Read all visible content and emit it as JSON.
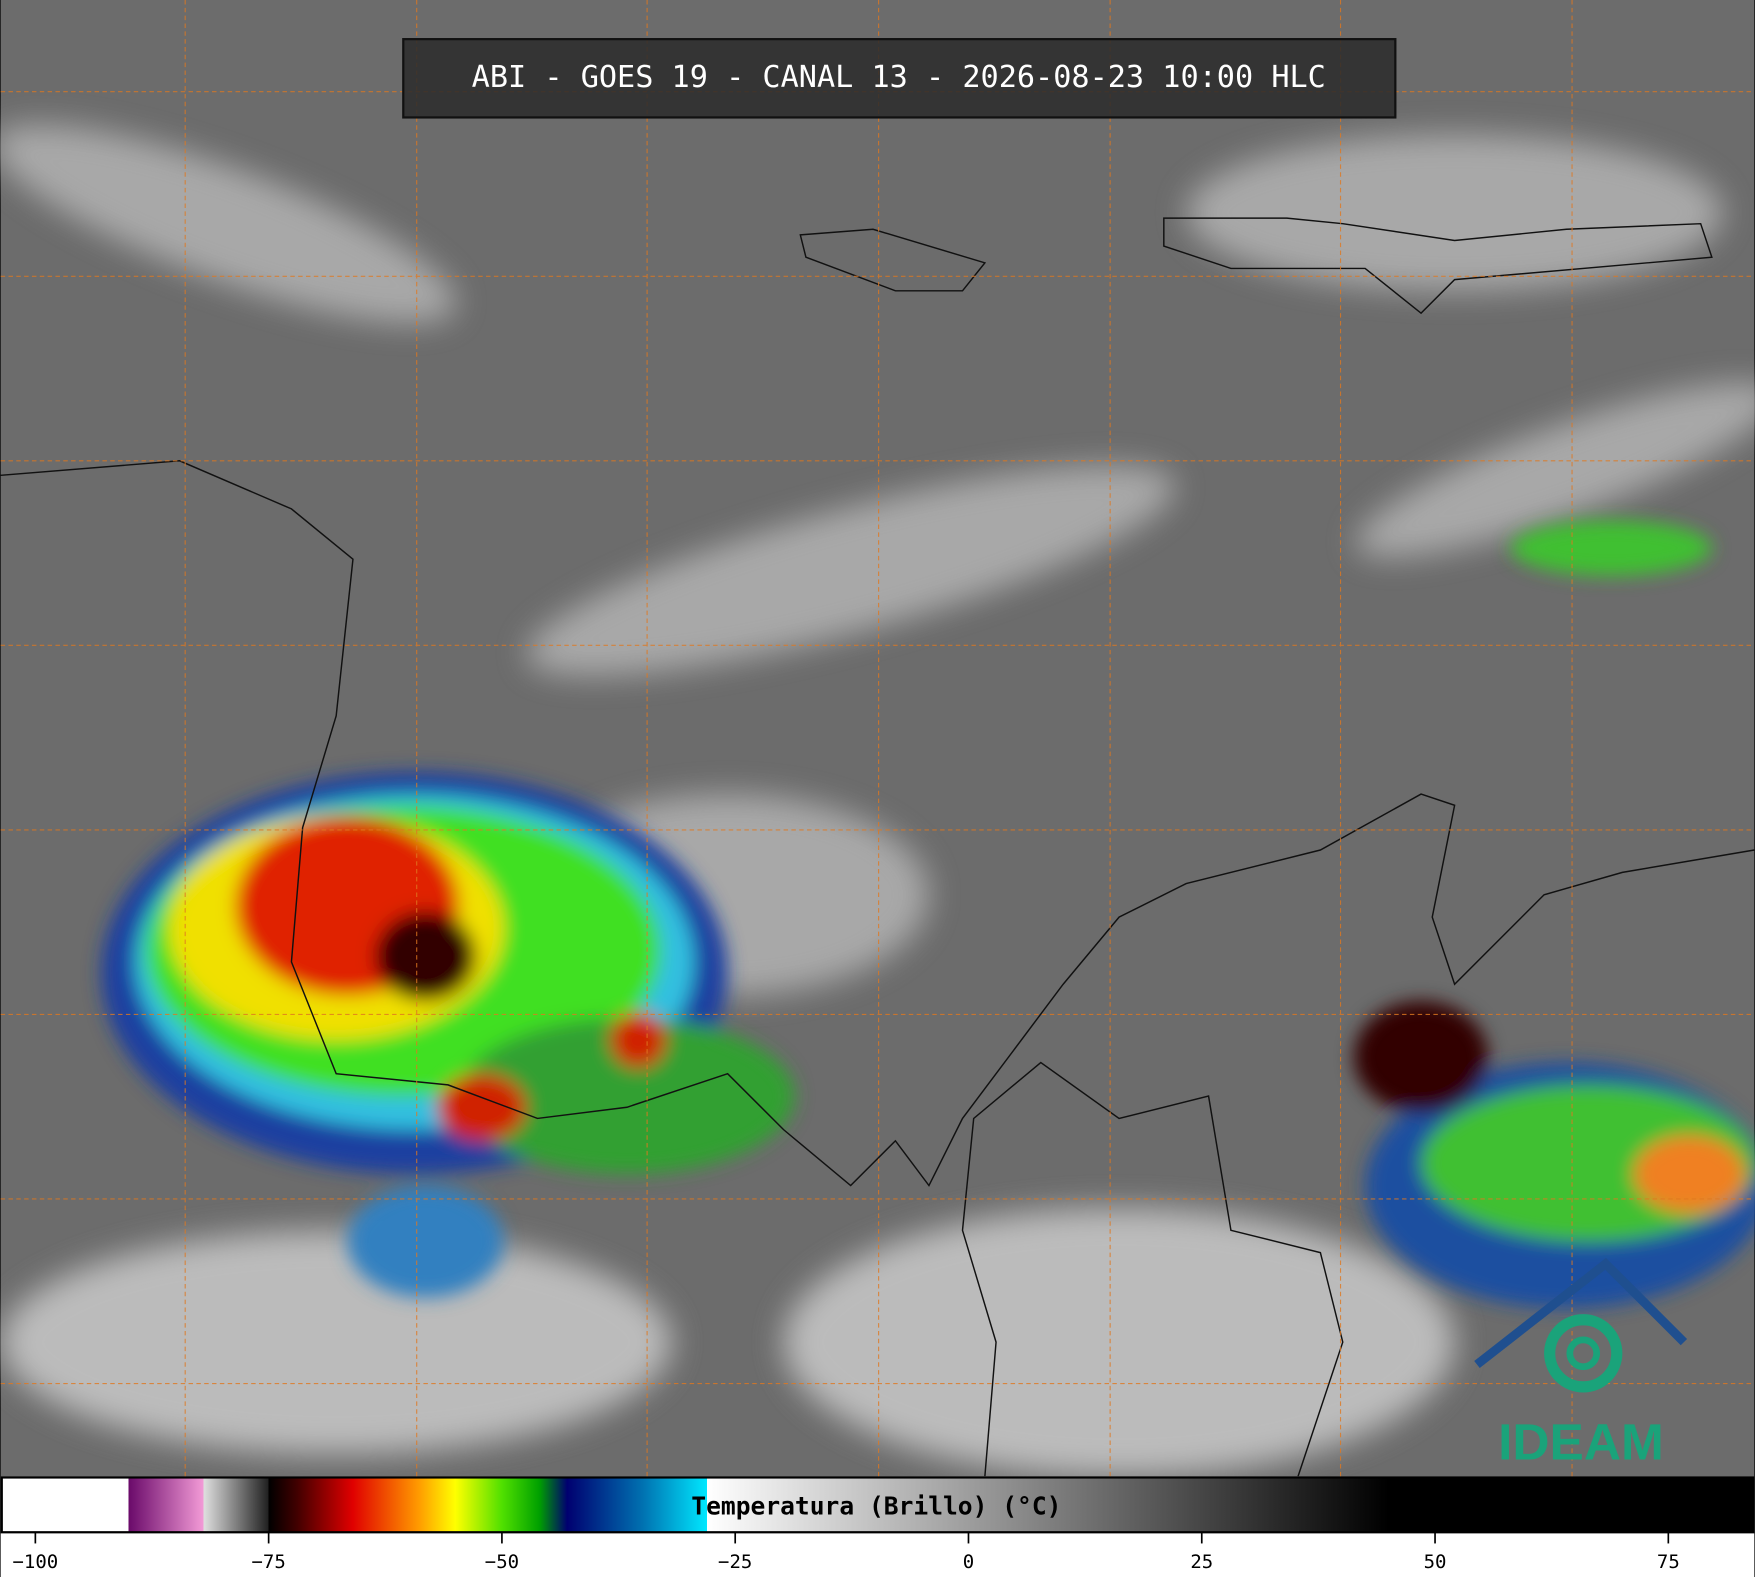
{
  "header": {
    "title": "ABI - GOES 19 - CANAL 13 - 2026-08-23 10:00 HLC"
  },
  "colorbar": {
    "type": "colorbar",
    "label": "Temperatura (Brillo) (°C)",
    "xlim": [
      -103.6,
      84.1
    ],
    "xticks": [
      {
        "value": -100,
        "label": "−100"
      },
      {
        "value": -75,
        "label": "−75"
      },
      {
        "value": -50,
        "label": "−50"
      },
      {
        "value": -25,
        "label": "−25"
      },
      0,
      25,
      50,
      75
    ],
    "colormap": [
      {
        "value": -103.6,
        "color": "#ffffff"
      },
      {
        "value": -90,
        "color": "#ffffff"
      },
      {
        "value": -90,
        "color": "#6a0a6a"
      },
      {
        "value": -82,
        "color": "#f29ad6"
      },
      {
        "value": -82,
        "color": "#e0e0e0"
      },
      {
        "value": -75,
        "color": "#202020"
      },
      {
        "value": -75,
        "color": "#000000"
      },
      {
        "value": -72,
        "color": "#400000"
      },
      {
        "value": -66,
        "color": "#e00000"
      },
      {
        "value": -59,
        "color": "#ff9900"
      },
      {
        "value": -55,
        "color": "#ffff00"
      },
      {
        "value": -50,
        "color": "#50e000"
      },
      {
        "value": -46,
        "color": "#00a000"
      },
      {
        "value": -43,
        "color": "#000070"
      },
      {
        "value": -35,
        "color": "#0070b0"
      },
      {
        "value": -28,
        "color": "#00e8ff"
      },
      {
        "value": -28,
        "color": "#ffffff"
      },
      {
        "value": 45,
        "color": "#000000"
      },
      {
        "value": 84.1,
        "color": "#000000"
      }
    ]
  },
  "logo": {
    "text": "IDEAM"
  }
}
